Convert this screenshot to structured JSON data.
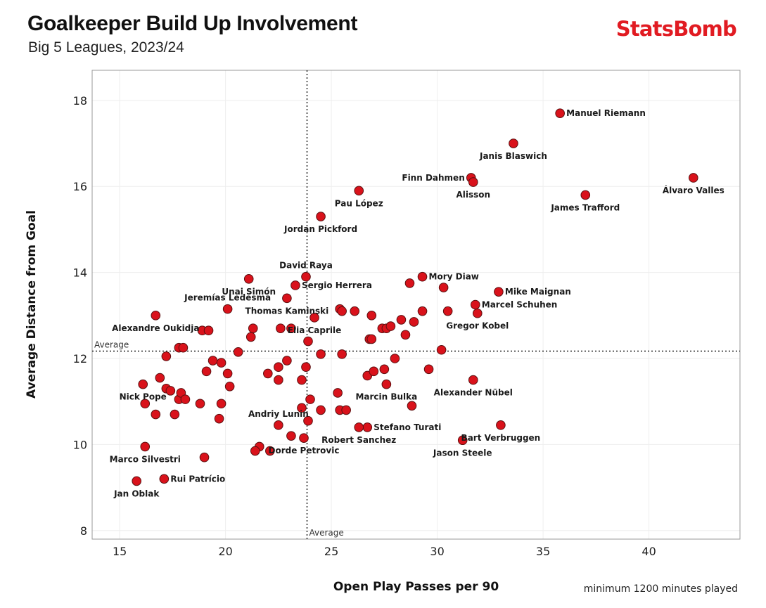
{
  "header": {
    "title": "Goalkeeper Build Up Involvement",
    "subtitle": "Big 5 Leagues, 2023/24",
    "brand": "StatsBomb"
  },
  "footer": {
    "note": "minimum 1200 minutes played"
  },
  "colors": {
    "point": "#d9121b",
    "point_edge": "#5a1010",
    "brand": "#e11b22",
    "grid": "#eeeeee",
    "frame": "#999999"
  },
  "chart_data": {
    "type": "scatter",
    "title": "Goalkeeper Build Up Involvement",
    "subtitle": "Big 5 Leagues, 2023/24",
    "xlabel": "Open Play Passes per 90",
    "ylabel": "Average Distance from Goal",
    "xlim": [
      13.7,
      44.3
    ],
    "ylim": [
      7.8,
      18.7
    ],
    "xticks": [
      15,
      20,
      25,
      30,
      35,
      40
    ],
    "yticks": [
      8,
      10,
      12,
      14,
      16,
      18
    ],
    "grid": true,
    "reference_lines": {
      "x": {
        "value": 23.85,
        "label": "Average"
      },
      "y": {
        "value": 12.17,
        "label": "Average"
      }
    },
    "labeled_points": [
      {
        "name": "Manuel Riemann",
        "x": 35.8,
        "y": 17.7,
        "lx": 1,
        "ly": 1
      },
      {
        "name": "Janis Blaswich",
        "x": 33.6,
        "y": 17.0,
        "lx": 0,
        "ly": 1
      },
      {
        "name": "Finn Dahmen",
        "x": 31.6,
        "y": 16.2,
        "lx": -1,
        "ly": 0
      },
      {
        "name": "Alisson",
        "x": 31.7,
        "y": 16.1,
        "lx": 0,
        "ly": 1
      },
      {
        "name": "Álvaro Valles",
        "x": 42.1,
        "y": 16.2,
        "lx": 0,
        "ly": 1
      },
      {
        "name": "James Trafford",
        "x": 37.0,
        "y": 15.8,
        "lx": 0,
        "ly": 1
      },
      {
        "name": "Pau López",
        "x": 26.3,
        "y": 15.9,
        "lx": 0,
        "ly": 1
      },
      {
        "name": "Jordan Pickford",
        "x": 24.5,
        "y": 15.3,
        "lx": 0,
        "ly": 1
      },
      {
        "name": "David Raya",
        "x": 23.8,
        "y": 13.9,
        "lx": 0,
        "ly": -1
      },
      {
        "name": "Mory Diaw",
        "x": 29.3,
        "y": 13.9,
        "lx": 1,
        "ly": 0
      },
      {
        "name": "Unai Simón",
        "x": 21.1,
        "y": 13.85,
        "lx": 0,
        "ly": 1
      },
      {
        "name": "Sergio Herrera",
        "x": 23.3,
        "y": 13.7,
        "lx": 1,
        "ly": 0
      },
      {
        "name": "Mike Maignan",
        "x": 32.9,
        "y": 13.55,
        "lx": 1,
        "ly": 0
      },
      {
        "name": "Jeremías Ledesma",
        "x": 20.1,
        "y": 13.15,
        "lx": 0,
        "ly": -1
      },
      {
        "name": "Marcel Schuhen",
        "x": 31.8,
        "y": 13.25,
        "lx": 1,
        "ly": 0
      },
      {
        "name": "Thomas Kaminski",
        "x": 22.9,
        "y": 13.4,
        "lx": 0,
        "ly": 1
      },
      {
        "name": "Gregor Kobel",
        "x": 31.9,
        "y": 13.05,
        "lx": 0,
        "ly": 1
      },
      {
        "name": "Alexandre Oukidja",
        "x": 16.7,
        "y": 13.0,
        "lx": 0,
        "ly": 1
      },
      {
        "name": "Elia Caprile",
        "x": 24.2,
        "y": 12.95,
        "lx": 0,
        "ly": 1
      },
      {
        "name": "Nick Pope",
        "x": 16.1,
        "y": 11.4,
        "lx": 0,
        "ly": 1
      },
      {
        "name": "Alexander Nübel",
        "x": 31.7,
        "y": 11.5,
        "lx": 0,
        "ly": 1
      },
      {
        "name": "Marcin Bulka",
        "x": 27.6,
        "y": 11.4,
        "lx": 0,
        "ly": 1
      },
      {
        "name": "Andriy Lunin",
        "x": 22.5,
        "y": 10.45,
        "lx": 0,
        "ly": -1
      },
      {
        "name": "Stefano Turati",
        "x": 26.7,
        "y": 10.4,
        "lx": 1,
        "ly": 0
      },
      {
        "name": "Bart Verbruggen",
        "x": 33.0,
        "y": 10.45,
        "lx": 0,
        "ly": 1
      },
      {
        "name": "Robert Sanchez",
        "x": 26.3,
        "y": 10.4,
        "lx": 0,
        "ly": 1
      },
      {
        "name": "Jason Steele",
        "x": 31.2,
        "y": 10.1,
        "lx": 0,
        "ly": 1
      },
      {
        "name": "Dorde Petrovic",
        "x": 23.7,
        "y": 10.15,
        "lx": 0,
        "ly": 1
      },
      {
        "name": "Marco Silvestri",
        "x": 16.2,
        "y": 9.95,
        "lx": 0,
        "ly": 1
      },
      {
        "name": "Rui Patrício",
        "x": 17.1,
        "y": 9.2,
        "lx": 1,
        "ly": 0
      },
      {
        "name": "Jan Oblak",
        "x": 15.8,
        "y": 9.15,
        "lx": 0,
        "ly": 1
      }
    ],
    "other_points": [
      [
        22.6,
        12.7
      ],
      [
        23.1,
        12.7
      ],
      [
        21.3,
        12.7
      ],
      [
        21.2,
        12.5
      ],
      [
        23.9,
        12.4
      ],
      [
        25.4,
        13.15
      ],
      [
        25.5,
        13.1
      ],
      [
        26.1,
        13.1
      ],
      [
        26.9,
        13.0
      ],
      [
        28.3,
        12.9
      ],
      [
        28.9,
        12.85
      ],
      [
        29.3,
        13.1
      ],
      [
        30.5,
        13.1
      ],
      [
        30.3,
        13.65
      ],
      [
        28.7,
        13.75
      ],
      [
        27.4,
        12.7
      ],
      [
        27.6,
        12.7
      ],
      [
        27.8,
        12.75
      ],
      [
        28.5,
        12.55
      ],
      [
        26.8,
        12.45
      ],
      [
        26.9,
        12.45
      ],
      [
        18.9,
        12.65
      ],
      [
        19.2,
        12.65
      ],
      [
        17.8,
        12.25
      ],
      [
        18.0,
        12.25
      ],
      [
        17.2,
        12.05
      ],
      [
        20.6,
        12.15
      ],
      [
        24.5,
        12.1
      ],
      [
        25.5,
        12.1
      ],
      [
        28.0,
        12.0
      ],
      [
        30.2,
        12.2
      ],
      [
        19.4,
        11.95
      ],
      [
        19.8,
        11.9
      ],
      [
        22.9,
        11.95
      ],
      [
        23.8,
        11.8
      ],
      [
        19.1,
        11.7
      ],
      [
        20.1,
        11.65
      ],
      [
        22.0,
        11.65
      ],
      [
        22.5,
        11.5
      ],
      [
        22.5,
        11.8
      ],
      [
        16.9,
        11.55
      ],
      [
        17.2,
        11.3
      ],
      [
        17.4,
        11.25
      ],
      [
        20.2,
        11.35
      ],
      [
        23.6,
        11.5
      ],
      [
        26.7,
        11.6
      ],
      [
        27.0,
        11.7
      ],
      [
        27.5,
        11.75
      ],
      [
        29.6,
        11.75
      ],
      [
        17.8,
        11.05
      ],
      [
        17.9,
        11.2
      ],
      [
        18.1,
        11.05
      ],
      [
        18.8,
        10.95
      ],
      [
        19.8,
        10.95
      ],
      [
        16.2,
        10.95
      ],
      [
        16.7,
        10.7
      ],
      [
        17.6,
        10.7
      ],
      [
        19.7,
        10.6
      ],
      [
        23.6,
        10.85
      ],
      [
        24.0,
        11.05
      ],
      [
        24.5,
        10.8
      ],
      [
        25.3,
        11.2
      ],
      [
        25.4,
        10.8
      ],
      [
        25.7,
        10.8
      ],
      [
        28.8,
        10.9
      ],
      [
        23.9,
        10.55
      ],
      [
        23.1,
        10.2
      ],
      [
        21.6,
        9.95
      ],
      [
        21.4,
        9.85
      ],
      [
        22.1,
        9.85
      ],
      [
        19.0,
        9.7
      ]
    ]
  }
}
